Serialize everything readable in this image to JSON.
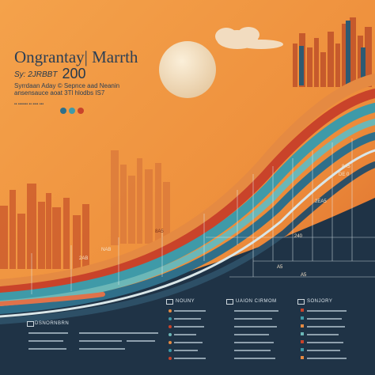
{
  "title": "Ongrantay| Marrth",
  "year_prefix": "Sy: 2JRBBT",
  "year": "200",
  "subtitle_1": "Syrrdaan Aday © Sepnce aad Neanin",
  "subtitle_2": "ansensauce aoat 3Tl hlodbs IS7",
  "stat_line": "•• ••••••• •• •••• •••",
  "chart_labels": {
    "l1": "8A5",
    "l2": "2EA5",
    "l3": "240",
    "l4": "A5",
    "l5": "8A5",
    "l6": "DE 0",
    "l7": "NAB",
    "l8": "2AB",
    "l9": "A5"
  },
  "legends": {
    "left": "NOUNY",
    "middle": "UAION CIRMOM",
    "right": "SONJORY",
    "bottom_left": "DSNORNBRN"
  },
  "colors": {
    "orange_light": "#f3a14a",
    "orange_dark": "#d9652a",
    "navy": "#1f3346",
    "teal": "#3f9aa8",
    "red": "#c9432a",
    "sun": "#f5e3c3"
  }
}
